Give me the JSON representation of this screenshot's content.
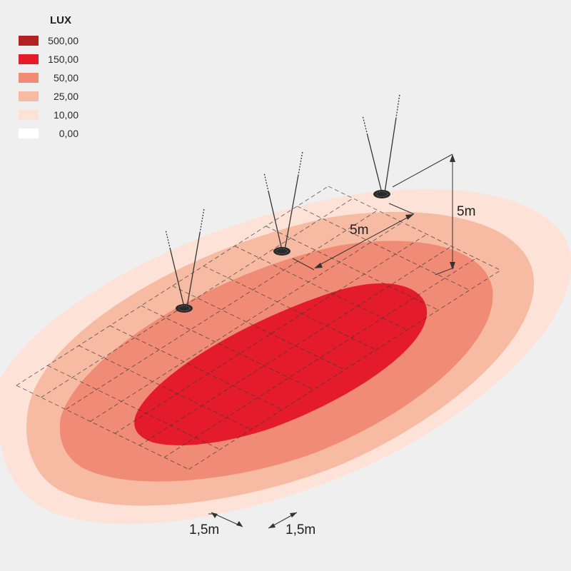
{
  "legend": {
    "title": "LUX",
    "levels": [
      {
        "value": "500,00",
        "color": "#b22222"
      },
      {
        "value": "150,00",
        "color": "#e31b2b"
      },
      {
        "value": "50,00",
        "color": "#f08c76"
      },
      {
        "value": "25,00",
        "color": "#f7bba4"
      },
      {
        "value": "10,00",
        "color": "#fde2d8"
      },
      {
        "value": "0,00",
        "color": "#ffffff"
      }
    ]
  },
  "dimensions": {
    "height": "5m",
    "spacing": "5m",
    "grid_cell_a": "1,5m",
    "grid_cell_b": "1,5m"
  },
  "luminaires": {
    "count": 3,
    "color": "#2a2a2a"
  }
}
